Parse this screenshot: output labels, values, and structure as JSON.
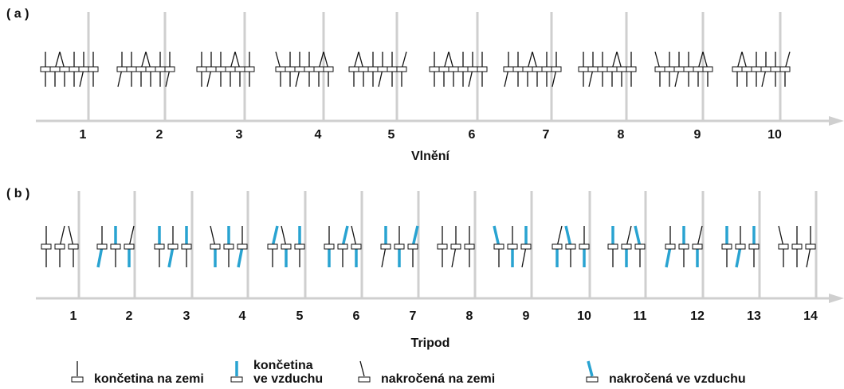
{
  "panels": [
    {
      "label": "( a )",
      "ticks": [
        1,
        2,
        3,
        4,
        5,
        6,
        7,
        8,
        9,
        10
      ],
      "title": "Vlnění"
    },
    {
      "label": "( b )",
      "ticks": [
        1,
        2,
        3,
        4,
        5,
        6,
        7,
        8,
        9,
        10,
        11,
        12,
        13,
        14
      ],
      "title": "Tripod"
    }
  ],
  "legend": [
    {
      "lines": [
        "končetina na zemi"
      ]
    },
    {
      "lines": [
        "končetina",
        "ve vzduchu"
      ]
    },
    {
      "lines": [
        "nakročená na zemi"
      ]
    },
    {
      "lines": [
        "nakročená ve vzduchu"
      ]
    }
  ]
}
